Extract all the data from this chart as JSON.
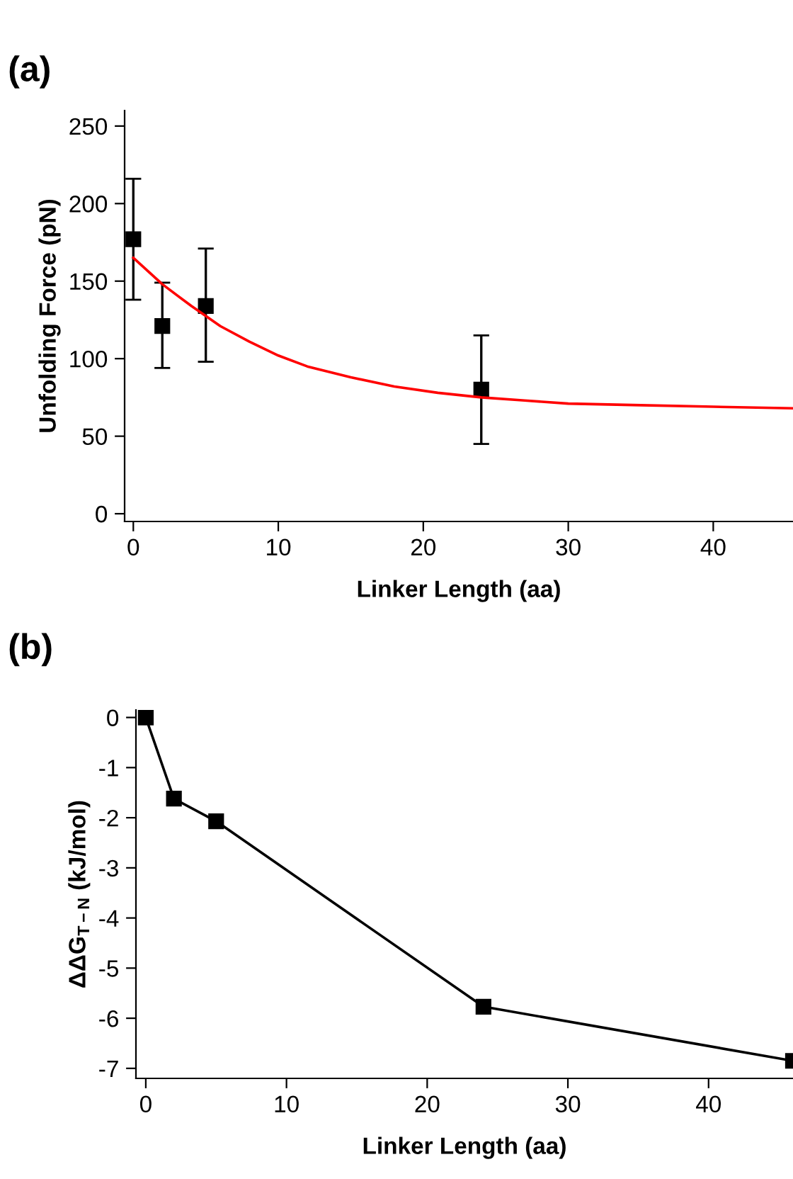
{
  "chart_data": [
    {
      "type": "scatter",
      "title": "(a)",
      "xlabel": "Linker Length (aa)",
      "ylabel": "Unfolding Force (pN)",
      "xlim": [
        -0.6,
        45.5
      ],
      "ylim": [
        -5,
        260
      ],
      "xticks": [
        0,
        10,
        20,
        30,
        40
      ],
      "yticks": [
        0,
        50,
        100,
        150,
        200,
        250
      ],
      "grid": false,
      "legend": false,
      "series": [
        {
          "color": "#000000",
          "marker": "square",
          "x": [
            0,
            2,
            5,
            24
          ],
          "values": [
            177,
            121,
            134,
            80
          ],
          "errors": [
            [
              138,
              216
            ],
            [
              94,
              149
            ],
            [
              98,
              171
            ],
            [
              45,
              115
            ]
          ]
        },
        {
          "type": "line",
          "color": "#ff0000",
          "marker": "none",
          "line_style": "solid",
          "x": [
            0,
            2,
            4,
            6,
            8,
            10,
            12,
            15,
            18,
            21,
            24,
            27,
            30,
            35,
            40,
            45.5
          ],
          "values": [
            165,
            148,
            134,
            121,
            111,
            102,
            95,
            88,
            82,
            78,
            75,
            73,
            71,
            70,
            69,
            68
          ]
        }
      ]
    },
    {
      "type": "line",
      "title": "(b)",
      "xlabel": "Linker Length (aa)",
      "ylabel": "ΔΔG$_{T−N}$ (kJ/mol)",
      "xlim": [
        -0.7,
        46
      ],
      "ylim": [
        -7.2,
        0.15
      ],
      "xticks": [
        0,
        10,
        20,
        30,
        40
      ],
      "yticks": [
        0,
        -1,
        -2,
        -3,
        -4,
        -5,
        -6,
        -7
      ],
      "grid": false,
      "legend": false,
      "series": [
        {
          "color": "#000000",
          "marker": "square",
          "line_style": "solid",
          "x": [
            0,
            2,
            5,
            24,
            46
          ],
          "values": [
            0,
            -1.62,
            -2.07,
            -5.77,
            -6.85
          ]
        }
      ]
    }
  ]
}
